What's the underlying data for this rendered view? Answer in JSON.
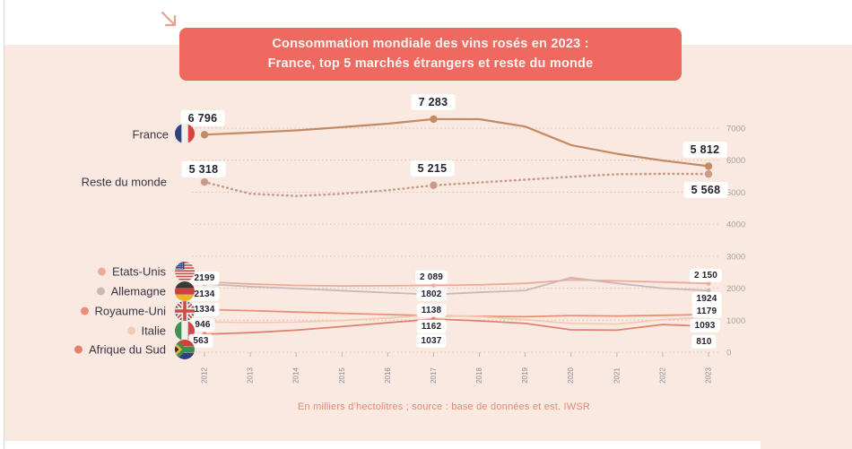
{
  "theme": {
    "accent": "#ee6a60",
    "panel": "#fae9e1",
    "title_text": "#fdf4f1",
    "badge_text": "#23212b",
    "legend_text": "#3a3644",
    "axis_text": "#a89f9b",
    "year_text": "#8b8894",
    "grid": "#c4afa4",
    "footer_text": "#df8b74",
    "arrow": "#e9a191"
  },
  "title": {
    "line1": "Consommation mondiale des vins rosés en 2023 :",
    "line2": "France, top 5 marchés étrangers et reste du monde"
  },
  "footer": "En milliers d’hectolitres ; source : base de données et est. IWSR",
  "chart_data": {
    "type": "line",
    "unit": "milliers d'hectolitres",
    "x": [
      2012,
      2013,
      2014,
      2015,
      2016,
      2017,
      2018,
      2019,
      2020,
      2021,
      2022,
      2023
    ],
    "yticks": [
      0,
      1000,
      2000,
      3000,
      4000,
      5000,
      6000,
      7000
    ],
    "ylim": [
      0,
      7500
    ],
    "grid": true,
    "legend_position": "left",
    "series": [
      {
        "name": "France",
        "flag": "fr",
        "color": "#c48a62",
        "line_style": "solid",
        "values": [
          6796,
          6860,
          6930,
          7030,
          7140,
          7283,
          7280,
          7050,
          6470,
          6200,
          5990,
          5812
        ],
        "point_labels": [
          {
            "i": 0,
            "text": "6 796"
          },
          {
            "i": 5,
            "text": "7 283"
          },
          {
            "i": 11,
            "text": "5 812"
          }
        ]
      },
      {
        "name": "Reste du monde",
        "flag": null,
        "color": "#c89c88",
        "line_style": "dotted",
        "values": [
          5318,
          4950,
          4880,
          4950,
          5060,
          5215,
          5300,
          5390,
          5480,
          5560,
          5575,
          5568
        ],
        "point_labels": [
          {
            "i": 0,
            "text": "5 318"
          },
          {
            "i": 5,
            "text": "5 215"
          },
          {
            "i": 11,
            "text": "5 568"
          }
        ]
      },
      {
        "name": "Etats-Unis",
        "flag": "us",
        "color": "#ecab99",
        "line_style": "solid",
        "values": [
          2199,
          2130,
          2085,
          2070,
          2075,
          2089,
          2105,
          2150,
          2260,
          2230,
          2190,
          2150
        ],
        "point_labels": [
          {
            "i": 0,
            "text": "2199"
          },
          {
            "i": 5,
            "text": "2 089"
          },
          {
            "i": 11,
            "text": "2 150"
          }
        ]
      },
      {
        "name": "Allemagne",
        "flag": "de",
        "color": "#c9b8b8",
        "line_style": "solid",
        "values": [
          2134,
          2050,
          1990,
          1925,
          1860,
          1802,
          1870,
          1930,
          2330,
          2150,
          2000,
          1924
        ],
        "point_labels": [
          {
            "i": 0,
            "text": "2134"
          },
          {
            "i": 5,
            "text": "1802"
          },
          {
            "i": 11,
            "text": "1924"
          }
        ]
      },
      {
        "name": "Royaume-Uni",
        "flag": "gb",
        "color": "#ea8f75",
        "line_style": "solid",
        "values": [
          1334,
          1300,
          1255,
          1215,
          1175,
          1138,
          1122,
          1110,
          1145,
          1130,
          1155,
          1179
        ],
        "point_labels": [
          {
            "i": 0,
            "text": "1334"
          },
          {
            "i": 5,
            "text": "1138"
          },
          {
            "i": 11,
            "text": "1179"
          }
        ]
      },
      {
        "name": "Italie",
        "flag": "it",
        "color": "#f2cbb3",
        "line_style": "solid",
        "values": [
          946,
          930,
          940,
          990,
          1070,
          1162,
          1110,
          1020,
          900,
          880,
          1020,
          1093
        ],
        "point_labels": [
          {
            "i": 0,
            "text": "946"
          },
          {
            "i": 5,
            "text": "1162"
          },
          {
            "i": 11,
            "text": "1093"
          }
        ]
      },
      {
        "name": "Afrique du Sud",
        "flag": "za",
        "color": "#e0816d",
        "line_style": "solid",
        "values": [
          563,
          610,
          690,
          800,
          920,
          1037,
          980,
          900,
          700,
          690,
          865,
          810
        ],
        "point_labels": [
          {
            "i": 0,
            "text": "563"
          },
          {
            "i": 5,
            "text": "1037"
          },
          {
            "i": 11,
            "text": "810"
          }
        ]
      }
    ]
  }
}
